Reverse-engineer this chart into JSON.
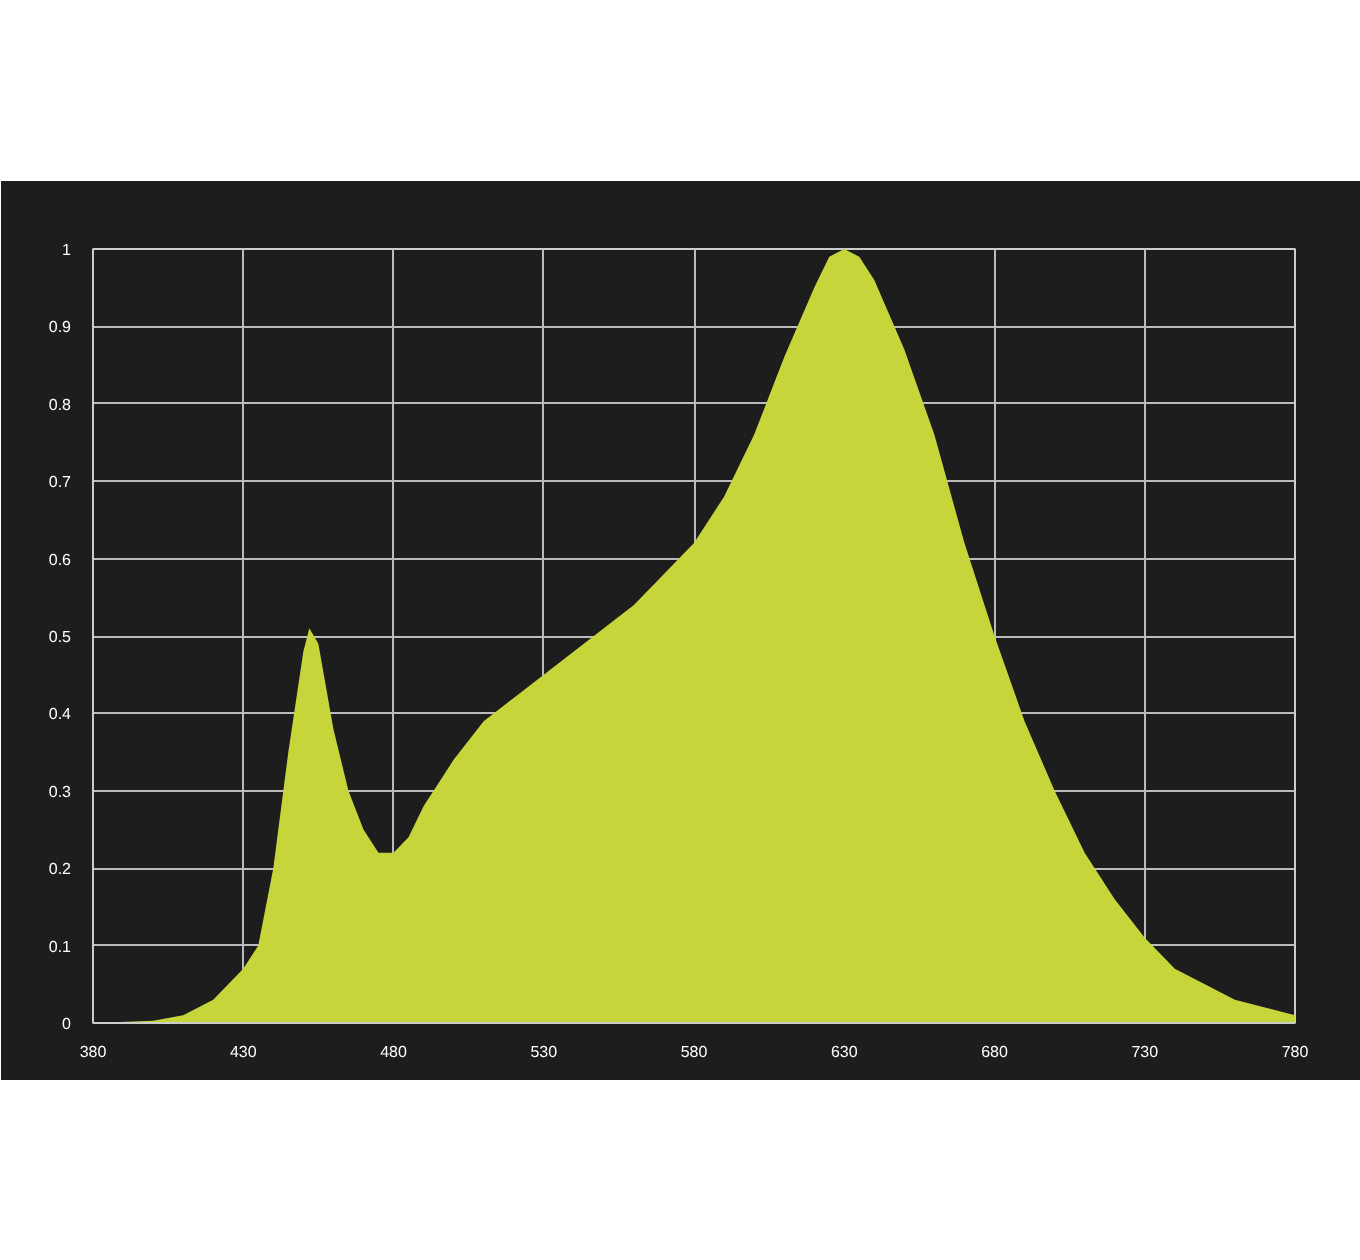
{
  "chart_data": {
    "type": "area",
    "x": [
      380,
      400,
      410,
      420,
      430,
      435,
      440,
      445,
      450,
      452,
      455,
      460,
      465,
      470,
      475,
      480,
      485,
      490,
      500,
      510,
      520,
      530,
      540,
      550,
      560,
      570,
      580,
      590,
      600,
      610,
      620,
      625,
      630,
      635,
      640,
      650,
      660,
      670,
      680,
      690,
      700,
      710,
      720,
      730,
      740,
      750,
      760,
      770,
      780
    ],
    "series": [
      {
        "values": [
          0,
          0.003,
          0.01,
          0.03,
          0.07,
          0.1,
          0.2,
          0.35,
          0.48,
          0.51,
          0.49,
          0.38,
          0.3,
          0.25,
          0.22,
          0.22,
          0.24,
          0.28,
          0.34,
          0.39,
          0.42,
          0.45,
          0.48,
          0.51,
          0.54,
          0.58,
          0.62,
          0.68,
          0.76,
          0.86,
          0.95,
          0.99,
          1.0,
          0.99,
          0.96,
          0.87,
          0.76,
          0.62,
          0.5,
          0.39,
          0.3,
          0.22,
          0.16,
          0.11,
          0.07,
          0.05,
          0.03,
          0.02,
          0.01
        ],
        "colors": [
          "#2a4a9c",
          "#2a4fa0",
          "#2c52a6",
          "#2e56ac",
          "#3059b2",
          "#325cb6",
          "#345fba",
          "#3663be",
          "#3868c2",
          "#3a6ac3",
          "#3a6ec4",
          "#3a76c4",
          "#3a7ec2",
          "#3a88bc",
          "#3a94b0",
          "#3aa0a0",
          "#3aa890",
          "#3bae80",
          "#3eb46c",
          "#4cba5c",
          "#5cbd50",
          "#7cc446",
          "#9ccc3c",
          "#b2d23a",
          "#c6d63a",
          "#d8cc34",
          "#e6c030",
          "#ecb030",
          "#f0a030",
          "#ee8e2a",
          "#e87a25",
          "#e47026",
          "#e06628",
          "#dc5c28",
          "#d9502a",
          "#d0402a",
          "#c8302a",
          "#bc282a",
          "#b0202a",
          "#a01c24",
          "#90181e",
          "#80141b",
          "#701218",
          "#600e14",
          "#500c10",
          "#480a10",
          "#400810",
          "#380709",
          "#300508"
        ]
      }
    ],
    "xlim": [
      380,
      780
    ],
    "ylim": [
      0,
      1
    ],
    "xticks": [
      380,
      430,
      480,
      530,
      580,
      630,
      680,
      730,
      780
    ],
    "yticks": [
      0,
      0.1,
      0.2,
      0.3,
      0.4,
      0.5,
      0.6,
      0.7,
      0.8,
      0.9,
      1
    ],
    "grid": true
  }
}
